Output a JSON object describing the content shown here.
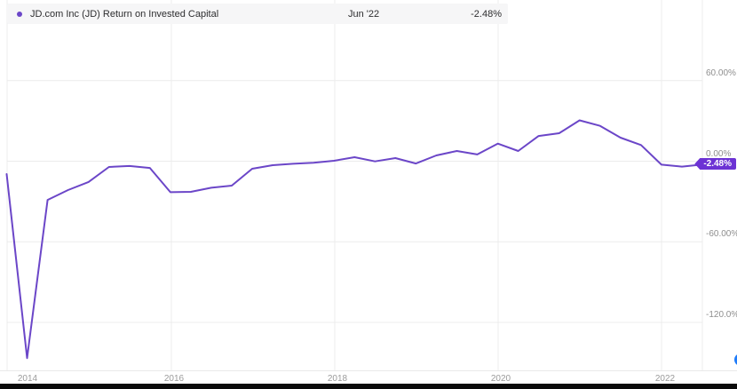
{
  "header": {
    "series_label": "JD.com Inc (JD) Return on Invested Capital",
    "tooltip_date": "Jun '22",
    "tooltip_value": "-2.48%"
  },
  "badge": {
    "label": "-2.48%"
  },
  "y_axis": {
    "labels": [
      "60.00%",
      "0.00%",
      "-60.00%",
      "-120.0%"
    ]
  },
  "x_axis": {
    "labels": [
      "2014",
      "2016",
      "2018",
      "2020",
      "2022"
    ]
  },
  "colors": {
    "line": "#6b46c8",
    "bullet": "#6b46c8",
    "badge_bg": "#6c32d4",
    "grid": "#ececec",
    "header_bg": "#f6f6f7",
    "axis_text": "#8e8e8e",
    "bottom_bar": "#0a0a0a",
    "edge_button": "#1f7cf9"
  },
  "chart_data": {
    "type": "line",
    "title": "JD.com Inc (JD) Return on Invested Capital",
    "unit": "%",
    "legend_position": "top-left header band",
    "grid": true,
    "ylim": [
      -155,
      120
    ],
    "y_gridlines": [
      60,
      0,
      -60,
      -120
    ],
    "y_tick_labels": [
      "60.00%",
      "0.00%",
      "-60.00%",
      "-120.0%"
    ],
    "x_tick_years": [
      2014,
      2016,
      2018,
      2020,
      2022
    ],
    "last_point_label": "-2.48%",
    "x": [
      "Dec '13",
      "Mar '14",
      "Jun '14",
      "Sep '14",
      "Dec '14",
      "Mar '15",
      "Jun '15",
      "Sep '15",
      "Dec '15",
      "Mar '16",
      "Jun '16",
      "Sep '16",
      "Dec '16",
      "Mar '17",
      "Jun '17",
      "Sep '17",
      "Dec '17",
      "Mar '18",
      "Jun '18",
      "Sep '18",
      "Dec '18",
      "Mar '19",
      "Jun '19",
      "Sep '19",
      "Dec '19",
      "Mar '20",
      "Jun '20",
      "Sep '20",
      "Dec '20",
      "Mar '21",
      "Jun '21",
      "Sep '21",
      "Dec '21",
      "Mar '22",
      "Jun '22"
    ],
    "values": [
      -9.6,
      -146.6,
      -28.8,
      -21.5,
      -15.5,
      -4.3,
      -3.6,
      -5.0,
      -23.1,
      -22.8,
      -19.8,
      -18.2,
      -5.6,
      -3.0,
      -1.9,
      -1.2,
      0.3,
      3.0,
      -0.1,
      2.3,
      -1.7,
      4.3,
      7.6,
      5.0,
      13.1,
      7.6,
      18.8,
      20.8,
      30.4,
      26.3,
      17.5,
      12.0,
      -2.6,
      -4.0,
      -2.48
    ]
  }
}
